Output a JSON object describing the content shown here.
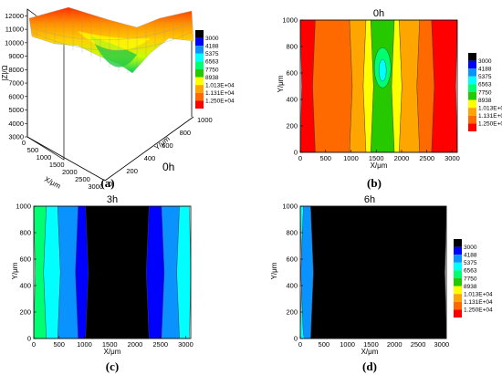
{
  "figure": {
    "colors": [
      "#000000",
      "#0000ff",
      "#0a93ff",
      "#00ffff",
      "#00ff70",
      "#26c800",
      "#ffff00",
      "#ffa500",
      "#ff6a00",
      "#ff0000"
    ],
    "legend_labels": [
      "3000",
      "4188",
      "5375",
      "6563",
      "7750",
      "8938",
      "1.013E+04",
      "1.131E+04",
      "1.250E+04"
    ]
  },
  "chart_data": [
    {
      "type": "surface",
      "panel_label": "(a)",
      "time_label": "0h",
      "zlabel": "|Z|/Ω",
      "xlabel": "X/μm",
      "ylabel": "Y/μm",
      "x_ticks": [
        "0",
        "500",
        "1000",
        "1500",
        "2000",
        "2500",
        "3000"
      ],
      "y_ticks": [
        "0",
        "200",
        "400",
        "600",
        "800",
        "1000"
      ],
      "z_ticks": [
        "3000",
        "4000",
        "5000",
        "6000",
        "7000",
        "8000",
        "9000",
        "10000",
        "11000",
        "12000"
      ],
      "zlim": [
        3000,
        12500
      ],
      "legend": [
        "3000",
        "4188",
        "5375",
        "6563",
        "7750",
        "8938",
        "1.013E+04",
        "1.131E+04",
        "1.250E+04"
      ]
    },
    {
      "type": "heatmap",
      "panel_label": "(b)",
      "title": "0h",
      "xlabel": "X/μm",
      "ylabel": "Y/μm",
      "x_ticks": [
        "0",
        "500",
        "1000",
        "1500",
        "2000",
        "2500",
        "3000"
      ],
      "y_ticks": [
        "0",
        "200",
        "400",
        "600",
        "800",
        "1000"
      ],
      "band_edges_x": [
        0,
        270,
        1000,
        1270,
        1420,
        1830,
        1980,
        2330,
        2620,
        3100
      ],
      "band_levels": [
        9,
        8,
        7,
        6,
        5,
        6,
        7,
        8,
        9
      ],
      "legend": [
        "3000",
        "4188",
        "5375",
        "6563",
        "7750",
        "8938",
        "1.013E+04",
        "1.131E+04",
        "1.250E+04"
      ]
    },
    {
      "type": "heatmap",
      "panel_label": "(c)",
      "title": "3h",
      "xlabel": "X/μm",
      "ylabel": "Y/μm",
      "x_ticks": [
        "0",
        "500",
        "1000",
        "1500",
        "2000",
        "2500",
        "3000"
      ],
      "y_ticks": [
        "0",
        "200",
        "400",
        "600",
        "800",
        "1000"
      ],
      "band_edges_x": [
        0,
        220,
        500,
        850,
        1050,
        2250,
        2550,
        2850,
        3100
      ],
      "band_levels": [
        4,
        3,
        2,
        1,
        0,
        1,
        2,
        3
      ],
      "legend": [
        "3000",
        "4188",
        "5375",
        "6563",
        "7750",
        "8938",
        "1.013E+04",
        "1.131E+04",
        "1.250E+04"
      ]
    },
    {
      "type": "heatmap",
      "panel_label": "(d)",
      "title": "6h",
      "xlabel": "X/μm",
      "ylabel": "Y/μm",
      "x_ticks": [
        "0",
        "500",
        "1000",
        "1500",
        "2000",
        "2500",
        "3000"
      ],
      "y_ticks": [
        "0",
        "200",
        "400",
        "600",
        "800",
        "1000"
      ],
      "band_edges_x": [
        0,
        40,
        250,
        3100
      ],
      "band_levels": [
        3,
        2,
        0
      ],
      "legend": [
        "3000",
        "4188",
        "5375",
        "6563",
        "7750",
        "8938",
        "1.013E+04",
        "1.131E+04",
        "1.250E+04"
      ]
    }
  ]
}
